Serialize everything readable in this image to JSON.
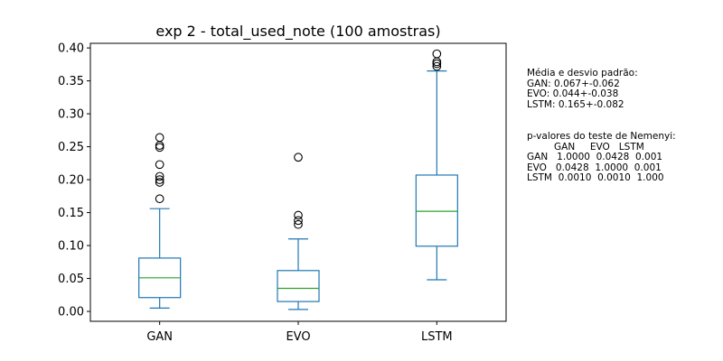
{
  "chart_data": {
    "type": "box",
    "title": "exp 2 - total_used_note (100 amostras)",
    "xlabel": "",
    "ylabel": "",
    "ylim": [
      -0.015,
      0.407
    ],
    "yticks": [
      "0.00",
      "0.05",
      "0.10",
      "0.15",
      "0.20",
      "0.25",
      "0.30",
      "0.35",
      "0.40"
    ],
    "categories": [
      "GAN",
      "EVO",
      "LSTM"
    ],
    "boxes": [
      {
        "name": "GAN",
        "whisker_low": 0.005,
        "q1": 0.021,
        "median": 0.051,
        "q3": 0.081,
        "whisker_high": 0.156,
        "outliers": [
          0.171,
          0.196,
          0.2,
          0.205,
          0.223,
          0.249,
          0.252,
          0.264
        ]
      },
      {
        "name": "EVO",
        "whisker_low": 0.003,
        "q1": 0.015,
        "median": 0.035,
        "q3": 0.062,
        "whisker_high": 0.11,
        "outliers": [
          0.132,
          0.138,
          0.146,
          0.234
        ]
      },
      {
        "name": "LSTM",
        "whisker_low": 0.048,
        "q1": 0.099,
        "median": 0.152,
        "q3": 0.207,
        "whisker_high": 0.365,
        "outliers": [
          0.372,
          0.376,
          0.379,
          0.391
        ]
      }
    ],
    "colors": {
      "box": "#1f77b4",
      "median": "#2ca02c",
      "outlier": "#000000",
      "axes": "#000000"
    },
    "grid": false
  },
  "annotations": {
    "stats_text": "Média e desvio padrão:\nGAN: 0.067+-0.062\nEVO: 0.044+-0.038\nLSTM: 0.165+-0.082",
    "nemenyi_text": "p-valores do teste de Nemenyi:\n         GAN     EVO   LSTM\nGAN   1.0000  0.0428  0.001\nEVO   0.0428  1.0000  0.001\nLSTM  0.0010  0.0010  1.000"
  }
}
